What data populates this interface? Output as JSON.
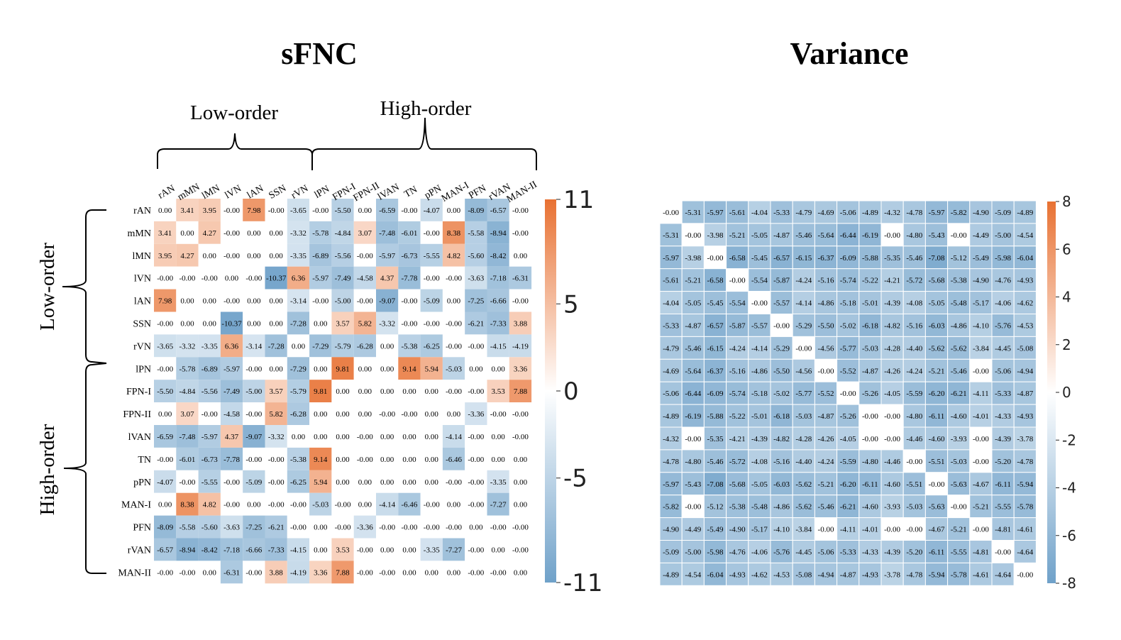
{
  "chart_data": [
    {
      "type": "heatmap",
      "title": "sFNC",
      "group_labels": {
        "top_low": "Low-order",
        "top_high": "High-order",
        "left_low": "Low-order",
        "left_high": "High-order"
      },
      "labels": [
        "rAN",
        "mMN",
        "lMN",
        "lVN",
        "lAN",
        "SSN",
        "rVN",
        "lPN",
        "FPN-I",
        "FPN-II",
        "lVAN",
        "TN",
        "pPN",
        "MAN-I",
        "PFN",
        "rVAN",
        "MAN-II"
      ],
      "row_labels": [
        "rAN",
        "mMN",
        "lMN",
        "lVN",
        "lAN",
        "SSN",
        "rVN",
        "lPN",
        "FPN-I",
        "FPN-II",
        "lVAN",
        "TN",
        "pPN",
        "MAN-I",
        "PFN",
        "rVAN",
        "MAN-II"
      ],
      "col_labels": [
        "rAN",
        "mMN",
        "lMN",
        "lVN",
        "lAN",
        "SSN",
        "rVN",
        "lPN",
        "FPN-I",
        "FPN-II",
        "lVAN",
        "TN",
        "pPN",
        "MAN-I",
        "PFN",
        "rVAN",
        "MAN-II"
      ],
      "values": [
        [
          "0.00",
          "3.41",
          "3.95",
          "-0.00",
          "7.98",
          "-0.00",
          "-3.65",
          "-0.00",
          "-5.50",
          "0.00",
          "-6.59",
          "-0.00",
          "-4.07",
          "0.00",
          "-8.09",
          "-6.57",
          "-0.00"
        ],
        [
          "3.41",
          "0.00",
          "4.27",
          "-0.00",
          "0.00",
          "0.00",
          "-3.32",
          "-5.78",
          "-4.84",
          "3.07",
          "-7.48",
          "-6.01",
          "-0.00",
          "8.38",
          "-5.58",
          "-8.94",
          "-0.00"
        ],
        [
          "3.95",
          "4.27",
          "0.00",
          "-0.00",
          "0.00",
          "0.00",
          "-3.35",
          "-6.89",
          "-5.56",
          "-0.00",
          "-5.97",
          "-6.73",
          "-5.55",
          "4.82",
          "-5.60",
          "-8.42",
          "0.00"
        ],
        [
          "-0.00",
          "-0.00",
          "-0.00",
          "0.00",
          "-0.00",
          "-10.37",
          "6.36",
          "-5.97",
          "-7.49",
          "-4.58",
          "4.37",
          "-7.78",
          "-0.00",
          "-0.00",
          "-3.63",
          "-7.18",
          "-6.31"
        ],
        [
          "7.98",
          "0.00",
          "0.00",
          "-0.00",
          "0.00",
          "0.00",
          "-3.14",
          "-0.00",
          "-5.00",
          "-0.00",
          "-9.07",
          "-0.00",
          "-5.09",
          "0.00",
          "-7.25",
          "-6.66",
          "-0.00"
        ],
        [
          "-0.00",
          "0.00",
          "0.00",
          "-10.37",
          "0.00",
          "0.00",
          "-7.28",
          "0.00",
          "3.57",
          "5.82",
          "-3.32",
          "-0.00",
          "-0.00",
          "-0.00",
          "-6.21",
          "-7.33",
          "3.88"
        ],
        [
          "-3.65",
          "-3.32",
          "-3.35",
          "6.36",
          "-3.14",
          "-7.28",
          "0.00",
          "-7.29",
          "-5.79",
          "-6.28",
          "0.00",
          "-5.38",
          "-6.25",
          "-0.00",
          "-0.00",
          "-4.15",
          "-4.19"
        ],
        [
          "-0.00",
          "-5.78",
          "-6.89",
          "-5.97",
          "-0.00",
          "0.00",
          "-7.29",
          "0.00",
          "9.81",
          "0.00",
          "0.00",
          "9.14",
          "5.94",
          "-5.03",
          "0.00",
          "0.00",
          "3.36"
        ],
        [
          "-5.50",
          "-4.84",
          "-5.56",
          "-7.49",
          "-5.00",
          "3.57",
          "-5.79",
          "9.81",
          "0.00",
          "0.00",
          "0.00",
          "0.00",
          "0.00",
          "-0.00",
          "-0.00",
          "3.53",
          "7.88"
        ],
        [
          "0.00",
          "3.07",
          "-0.00",
          "-4.58",
          "-0.00",
          "5.82",
          "-6.28",
          "0.00",
          "0.00",
          "0.00",
          "-0.00",
          "-0.00",
          "0.00",
          "0.00",
          "-3.36",
          "-0.00",
          "-0.00"
        ],
        [
          "-6.59",
          "-7.48",
          "-5.97",
          "4.37",
          "-9.07",
          "-3.32",
          "0.00",
          "0.00",
          "0.00",
          "-0.00",
          "0.00",
          "0.00",
          "0.00",
          "-4.14",
          "-0.00",
          "0.00",
          "-0.00"
        ],
        [
          "-0.00",
          "-6.01",
          "-6.73",
          "-7.78",
          "-0.00",
          "-0.00",
          "-5.38",
          "9.14",
          "0.00",
          "-0.00",
          "0.00",
          "0.00",
          "0.00",
          "-6.46",
          "-0.00",
          "0.00",
          "0.00"
        ],
        [
          "-4.07",
          "-0.00",
          "-5.55",
          "-0.00",
          "-5.09",
          "-0.00",
          "-6.25",
          "5.94",
          "0.00",
          "0.00",
          "0.00",
          "0.00",
          "0.00",
          "-0.00",
          "-0.00",
          "-3.35",
          "0.00"
        ],
        [
          "0.00",
          "8.38",
          "4.82",
          "-0.00",
          "0.00",
          "-0.00",
          "-0.00",
          "-5.03",
          "-0.00",
          "0.00",
          "-4.14",
          "-6.46",
          "-0.00",
          "0.00",
          "-0.00",
          "-7.27",
          "0.00"
        ],
        [
          "-8.09",
          "-5.58",
          "-5.60",
          "-3.63",
          "-7.25",
          "-6.21",
          "-0.00",
          "0.00",
          "-0.00",
          "-3.36",
          "-0.00",
          "-0.00",
          "-0.00",
          "-0.00",
          "0.00",
          "-0.00",
          "-0.00"
        ],
        [
          "-6.57",
          "-8.94",
          "-8.42",
          "-7.18",
          "-6.66",
          "-7.33",
          "-4.15",
          "0.00",
          "3.53",
          "-0.00",
          "0.00",
          "0.00",
          "-3.35",
          "-7.27",
          "-0.00",
          "0.00",
          "-0.00"
        ],
        [
          "-0.00",
          "-0.00",
          "0.00",
          "-6.31",
          "-0.00",
          "3.88",
          "-4.19",
          "3.36",
          "7.88",
          "-0.00",
          "-0.00",
          "0.00",
          "0.00",
          "0.00",
          "-0.00",
          "-0.00",
          "0.00"
        ]
      ],
      "colorbar": {
        "min": -11,
        "max": 11,
        "ticks": [
          11,
          5,
          0,
          -5,
          -11
        ],
        "low_color": "#6fa1c9",
        "mid_color": "#ffffff",
        "high_color": "#e87132"
      }
    },
    {
      "type": "heatmap",
      "title": "Variance",
      "values": [
        [
          "-0.00",
          "-5.31",
          "-5.97",
          "-5.61",
          "-4.04",
          "-5.33",
          "-4.79",
          "-4.69",
          "-5.06",
          "-4.89",
          "-4.32",
          "-4.78",
          "-5.97",
          "-5.82",
          "-4.90",
          "-5.09",
          "-4.89"
        ],
        [
          "-5.31",
          "-0.00",
          "-3.98",
          "-5.21",
          "-5.05",
          "-4.87",
          "-5.46",
          "-5.64",
          "-6.44",
          "-6.19",
          "-0.00",
          "-4.80",
          "-5.43",
          "-0.00",
          "-4.49",
          "-5.00",
          "-4.54"
        ],
        [
          "-5.97",
          "-3.98",
          "-0.00",
          "-6.58",
          "-5.45",
          "-6.57",
          "-6.15",
          "-6.37",
          "-6.09",
          "-5.88",
          "-5.35",
          "-5.46",
          "-7.08",
          "-5.12",
          "-5.49",
          "-5.98",
          "-6.04"
        ],
        [
          "-5.61",
          "-5.21",
          "-6.58",
          "-0.00",
          "-5.54",
          "-5.87",
          "-4.24",
          "-5.16",
          "-5.74",
          "-5.22",
          "-4.21",
          "-5.72",
          "-5.68",
          "-5.38",
          "-4.90",
          "-4.76",
          "-4.93"
        ],
        [
          "-4.04",
          "-5.05",
          "-5.45",
          "-5.54",
          "-0.00",
          "-5.57",
          "-4.14",
          "-4.86",
          "-5.18",
          "-5.01",
          "-4.39",
          "-4.08",
          "-5.05",
          "-5.48",
          "-5.17",
          "-4.06",
          "-4.62"
        ],
        [
          "-5.33",
          "-4.87",
          "-6.57",
          "-5.87",
          "-5.57",
          "-0.00",
          "-5.29",
          "-5.50",
          "-5.02",
          "-6.18",
          "-4.82",
          "-5.16",
          "-6.03",
          "-4.86",
          "-4.10",
          "-5.76",
          "-4.53"
        ],
        [
          "-4.79",
          "-5.46",
          "-6.15",
          "-4.24",
          "-4.14",
          "-5.29",
          "-0.00",
          "-4.56",
          "-5.77",
          "-5.03",
          "-4.28",
          "-4.40",
          "-5.62",
          "-5.62",
          "-3.84",
          "-4.45",
          "-5.08"
        ],
        [
          "-4.69",
          "-5.64",
          "-6.37",
          "-5.16",
          "-4.86",
          "-5.50",
          "-4.56",
          "-0.00",
          "-5.52",
          "-4.87",
          "-4.26",
          "-4.24",
          "-5.21",
          "-5.46",
          "-0.00",
          "-5.06",
          "-4.94"
        ],
        [
          "-5.06",
          "-6.44",
          "-6.09",
          "-5.74",
          "-5.18",
          "-5.02",
          "-5.77",
          "-5.52",
          "-0.00",
          "-5.26",
          "-4.05",
          "-5.59",
          "-6.20",
          "-6.21",
          "-4.11",
          "-5.33",
          "-4.87"
        ],
        [
          "-4.89",
          "-6.19",
          "-5.88",
          "-5.22",
          "-5.01",
          "-6.18",
          "-5.03",
          "-4.87",
          "-5.26",
          "-0.00",
          "-0.00",
          "-4.80",
          "-6.11",
          "-4.60",
          "-4.01",
          "-4.33",
          "-4.93"
        ],
        [
          "-4.32",
          "-0.00",
          "-5.35",
          "-4.21",
          "-4.39",
          "-4.82",
          "-4.28",
          "-4.26",
          "-4.05",
          "-0.00",
          "-0.00",
          "-4.46",
          "-4.60",
          "-3.93",
          "-0.00",
          "-4.39",
          "-3.78"
        ],
        [
          "-4.78",
          "-4.80",
          "-5.46",
          "-5.72",
          "-4.08",
          "-5.16",
          "-4.40",
          "-4.24",
          "-5.59",
          "-4.80",
          "-4.46",
          "-0.00",
          "-5.51",
          "-5.03",
          "-0.00",
          "-5.20",
          "-4.78"
        ],
        [
          "-5.97",
          "-5.43",
          "-7.08",
          "-5.68",
          "-5.05",
          "-6.03",
          "-5.62",
          "-5.21",
          "-6.20",
          "-6.11",
          "-4.60",
          "-5.51",
          "-0.00",
          "-5.63",
          "-4.67",
          "-6.11",
          "-5.94"
        ],
        [
          "-5.82",
          "-0.00",
          "-5.12",
          "-5.38",
          "-5.48",
          "-4.86",
          "-5.62",
          "-5.46",
          "-6.21",
          "-4.60",
          "-3.93",
          "-5.03",
          "-5.63",
          "-0.00",
          "-5.21",
          "-5.55",
          "-5.78"
        ],
        [
          "-4.90",
          "-4.49",
          "-5.49",
          "-4.90",
          "-5.17",
          "-4.10",
          "-3.84",
          "-0.00",
          "-4.11",
          "-4.01",
          "-0.00",
          "-0.00",
          "-4.67",
          "-5.21",
          "-0.00",
          "-4.81",
          "-4.61"
        ],
        [
          "-5.09",
          "-5.00",
          "-5.98",
          "-4.76",
          "-4.06",
          "-5.76",
          "-4.45",
          "-5.06",
          "-5.33",
          "-4.33",
          "-4.39",
          "-5.20",
          "-6.11",
          "-5.55",
          "-4.81",
          "-0.00",
          "-4.64"
        ],
        [
          "-4.89",
          "-4.54",
          "-6.04",
          "-4.93",
          "-4.62",
          "-4.53",
          "-5.08",
          "-4.94",
          "-4.87",
          "-4.93",
          "-3.78",
          "-4.78",
          "-5.94",
          "-5.78",
          "-4.61",
          "-4.64",
          "-0.00"
        ]
      ],
      "colorbar": {
        "min": -8,
        "max": 8,
        "ticks": [
          8,
          6,
          4,
          2,
          0,
          -2,
          -4,
          -6,
          -8
        ],
        "low_color": "#6fa1c9",
        "mid_color": "#ffffff",
        "high_color": "#e87132"
      }
    }
  ]
}
